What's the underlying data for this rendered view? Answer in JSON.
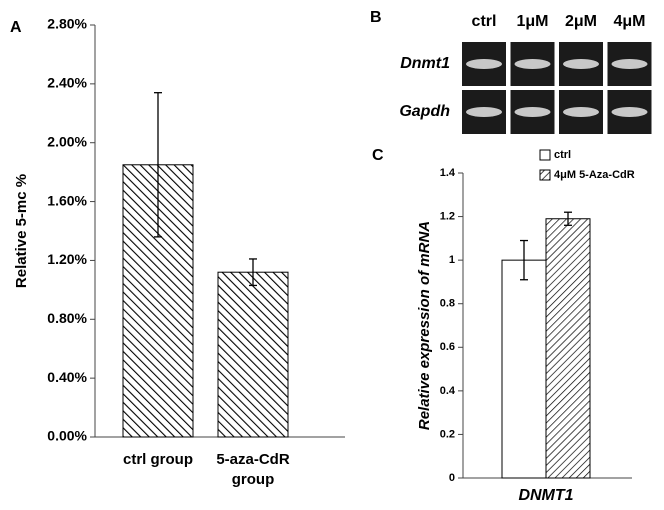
{
  "panel_labels": [
    "A",
    "B",
    "C"
  ],
  "gel": {
    "columns": [
      "ctrl",
      "1μM",
      "2μM",
      "4μM"
    ],
    "rows": [
      "Dnmt1",
      "Gapdh"
    ]
  },
  "chart_data": [
    {
      "type": "bar",
      "y_label": "Relative 5-mc %",
      "categories": [
        "ctrl group",
        "5-aza-CdR group"
      ],
      "values": [
        1.85,
        1.12
      ],
      "errors": [
        0.49,
        0.09
      ],
      "color": "#000000",
      "hatch": "back",
      "ylim": [
        0,
        2.8
      ],
      "yticks": [
        {
          "value": 0,
          "label": "0.00%"
        },
        {
          "value": 0.4,
          "label": "0.40%"
        },
        {
          "value": 0.8,
          "label": "0.80%"
        },
        {
          "value": 1.2,
          "label": "1.20%"
        },
        {
          "value": 1.6,
          "label": "1.60%"
        },
        {
          "value": 2.0,
          "label": "2.00%"
        },
        {
          "value": 2.4,
          "label": "2.40%"
        },
        {
          "value": 2.8,
          "label": "2.80%"
        }
      ]
    },
    {
      "type": "bar",
      "y_label": "Relative expression of mRNA",
      "categories": [
        "DNMT1"
      ],
      "series": [
        {
          "name": "ctrl",
          "color": "#ffffff",
          "values": [
            1.0
          ],
          "errors": [
            0.09
          ]
        },
        {
          "name": "4μM 5-Aza-CdR",
          "color": "#000000",
          "hatch": "forward",
          "values": [
            1.19
          ],
          "errors": [
            0.03
          ]
        }
      ],
      "ylim": [
        0,
        1.4
      ],
      "yticks": [
        0,
        0.2,
        0.4,
        0.6,
        0.8,
        1,
        1.2,
        1.4
      ]
    }
  ]
}
